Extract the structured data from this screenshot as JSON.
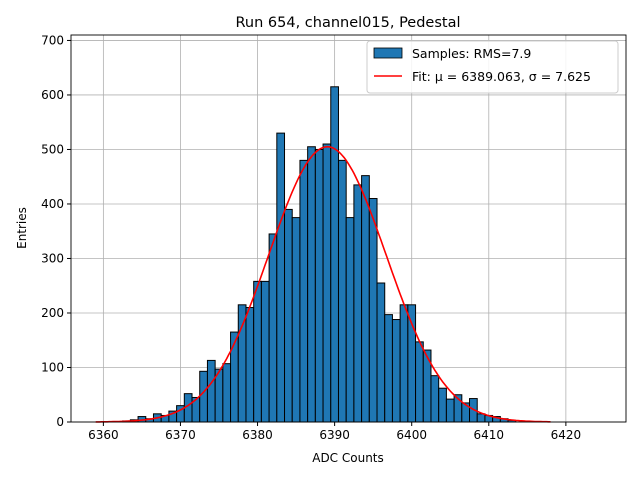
{
  "chart_data": {
    "type": "bar",
    "title": "Run 654, channel015, Pedestal",
    "xlabel": "ADC Counts",
    "ylabel": "Entries",
    "xlim": [
      6355.8,
      6427.8
    ],
    "ylim": [
      0,
      710
    ],
    "xticks": [
      6360,
      6370,
      6380,
      6390,
      6400,
      6410,
      6420
    ],
    "yticks": [
      0,
      100,
      200,
      300,
      400,
      500,
      600,
      700
    ],
    "grid": true,
    "legend_position": "top-right",
    "bin_width": 1,
    "bins": [
      6363,
      6364,
      6365,
      6366,
      6367,
      6368,
      6369,
      6370,
      6371,
      6372,
      6373,
      6374,
      6375,
      6376,
      6377,
      6378,
      6379,
      6380,
      6381,
      6382,
      6383,
      6384,
      6385,
      6386,
      6387,
      6388,
      6389,
      6390,
      6391,
      6392,
      6393,
      6394,
      6395,
      6396,
      6397,
      6398,
      6399,
      6400,
      6401,
      6402,
      6403,
      6404,
      6405,
      6406,
      6407,
      6408,
      6409,
      6410,
      6411,
      6412,
      6413
    ],
    "values": [
      2,
      4,
      10,
      6,
      15,
      12,
      20,
      30,
      52,
      45,
      93,
      113,
      97,
      107,
      165,
      215,
      210,
      258,
      258,
      345,
      530,
      390,
      375,
      480,
      505,
      500,
      510,
      615,
      480,
      375,
      435,
      452,
      410,
      255,
      197,
      188,
      215,
      215,
      147,
      132,
      85,
      62,
      42,
      50,
      35,
      43,
      15,
      12,
      10,
      6,
      3
    ],
    "series": [
      {
        "name": "Samples: RMS=7.9",
        "kind": "histogram",
        "color": "#1f77b4"
      },
      {
        "name": "Fit: μ = 6389.063, σ = 7.625",
        "kind": "gaussian-fit",
        "color": "#ff0000",
        "amplitude": 505,
        "mu": 6389.063,
        "sigma": 7.625,
        "range": [
          6359,
          6418
        ]
      }
    ]
  }
}
